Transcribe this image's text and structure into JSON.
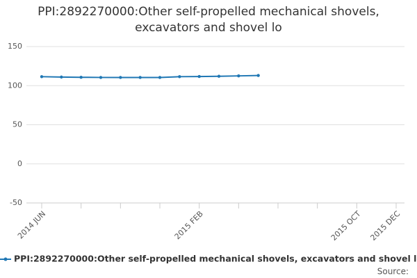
{
  "chart_data": {
    "type": "line",
    "title": "PPI:2892270000:Other self-propelled mechanical shovels, excavators and shovel lo",
    "categories": [
      "2014 JUN",
      null,
      null,
      null,
      null,
      null,
      null,
      null,
      "2015 FEB",
      null,
      null,
      null,
      null,
      null,
      null,
      null,
      "2015 OCT",
      null,
      "2015 DEC"
    ],
    "series": [
      {
        "name": "PPI:2892270000:Other self-propelled mechanical shovels, excavators and shovel lo",
        "color": "#1f77b4",
        "values": [
          111.5,
          111,
          110.7,
          110.5,
          110.5,
          110.5,
          110.5,
          111.5,
          111.7,
          112,
          112.5,
          113,
          null,
          null,
          null,
          null,
          null,
          null,
          null
        ]
      }
    ],
    "ylim": [
      -50,
      150
    ],
    "yticks": [
      -50,
      0,
      50,
      100,
      150
    ],
    "grid": true,
    "legend": "bottom",
    "source": "Source:"
  }
}
